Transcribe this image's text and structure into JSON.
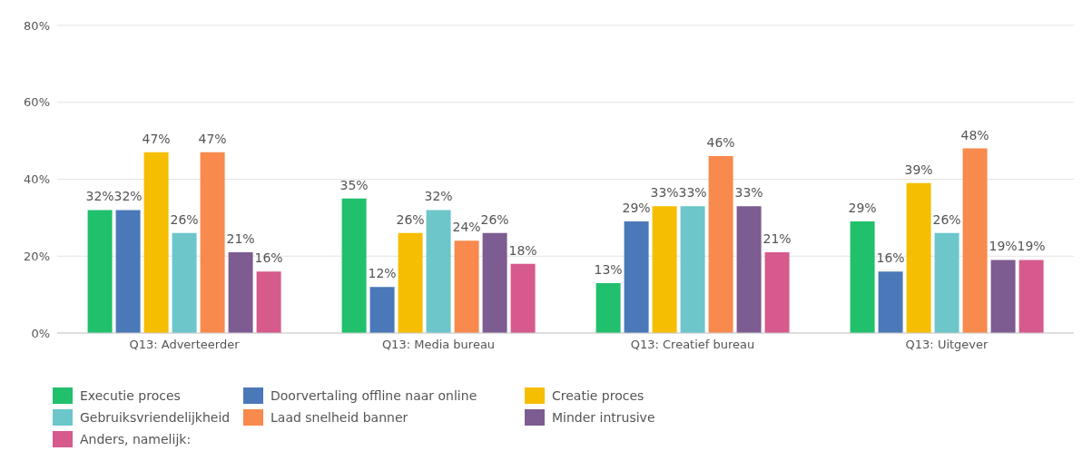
{
  "chart_data": {
    "type": "bar",
    "categories": [
      "Q13: Adverteerder",
      "Q13: Media bureau",
      "Q13: Creatief bureau",
      "Q13: Uitgever"
    ],
    "series": [
      {
        "name": "Executie proces",
        "color": "#21c06c",
        "values": [
          32,
          35,
          13,
          29
        ],
        "value_labels": [
          "32%",
          "35%",
          "13%",
          "29%"
        ]
      },
      {
        "name": "Doorvertaling offline naar online",
        "color": "#4a78b8",
        "values": [
          32,
          12,
          29,
          16
        ],
        "value_labels": [
          "32%",
          "12%",
          "29%",
          "16%"
        ]
      },
      {
        "name": "Creatie proces",
        "color": "#f6be00",
        "values": [
          47,
          26,
          33,
          39
        ],
        "value_labels": [
          "47%",
          "26%",
          "33%",
          "39%"
        ]
      },
      {
        "name": "Gebruiksvriendelijkheid",
        "color": "#6cc6ca",
        "values": [
          26,
          32,
          33,
          26
        ],
        "value_labels": [
          "26%",
          "32%",
          "33%",
          "26%"
        ]
      },
      {
        "name": "Laad snelheid banner",
        "color": "#f78a4c",
        "values": [
          47,
          24,
          46,
          48
        ],
        "value_labels": [
          "47%",
          "24%",
          "46%",
          "48%"
        ]
      },
      {
        "name": "Minder intrusive",
        "color": "#7d5c91",
        "values": [
          21,
          26,
          33,
          19
        ],
        "value_labels": [
          "21%",
          "26%",
          "33%",
          "19%"
        ]
      },
      {
        "name": "Anders, namelijk:",
        "color": "#d65a8c",
        "values": [
          16,
          18,
          21,
          19
        ],
        "value_labels": [
          "16%",
          "18%",
          "21%",
          "19%"
        ]
      }
    ],
    "ylim": [
      0,
      80
    ],
    "yticks": [
      {
        "value": 0,
        "label": "0%"
      },
      {
        "value": 20,
        "label": "20%"
      },
      {
        "value": 40,
        "label": "40%"
      },
      {
        "value": 60,
        "label": "60%"
      },
      {
        "value": 80,
        "label": "80%"
      }
    ],
    "grid": "y",
    "legend": "bottom left"
  }
}
